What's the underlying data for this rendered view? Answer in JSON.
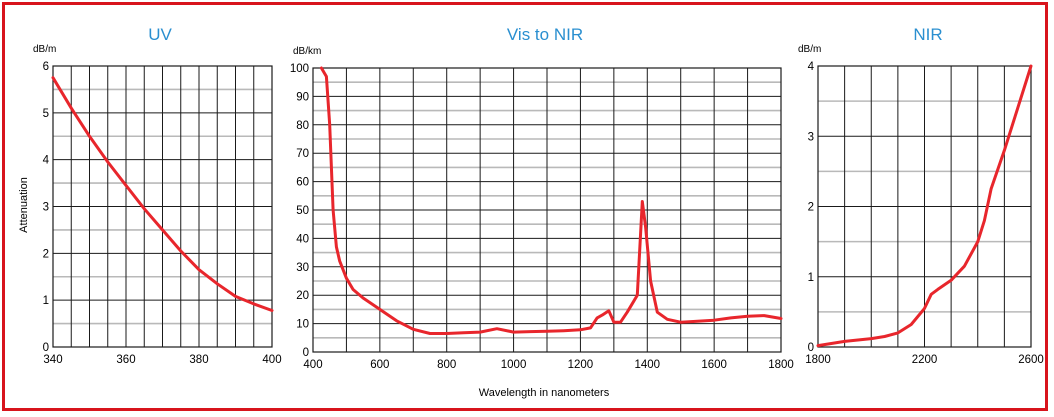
{
  "colors": {
    "frame": "#d8141c",
    "title": "#2a8fd0",
    "curve": "#e8262c"
  },
  "shared": {
    "ylabel": "Attenuation",
    "xlabel": "Wavelength in nanometers"
  },
  "chart_data": [
    {
      "type": "line",
      "title": "UV",
      "yunit": "dB/m",
      "xlim": [
        340,
        400
      ],
      "ylim": [
        0,
        6
      ],
      "xticks": [
        340,
        360,
        380,
        400
      ],
      "yticks": [
        0,
        1,
        2,
        3,
        4,
        5,
        6
      ],
      "grid": true,
      "series": [
        {
          "x": [
            340,
            345,
            350,
            355,
            360,
            365,
            370,
            375,
            380,
            385,
            390,
            395,
            400
          ],
          "y": [
            5.75,
            5.1,
            4.5,
            3.95,
            3.45,
            2.95,
            2.5,
            2.05,
            1.65,
            1.35,
            1.08,
            0.92,
            0.78
          ]
        }
      ]
    },
    {
      "type": "line",
      "title": "Vis to NIR",
      "yunit": "dB/km",
      "xlim": [
        400,
        1800
      ],
      "ylim": [
        0,
        100
      ],
      "xticks": [
        400,
        600,
        800,
        1000,
        1200,
        1400,
        1600,
        1800
      ],
      "yticks": [
        0,
        10,
        20,
        30,
        40,
        50,
        60,
        70,
        80,
        90,
        100
      ],
      "grid": true,
      "series": [
        {
          "x": [
            425,
            440,
            450,
            460,
            470,
            480,
            500,
            520,
            550,
            600,
            650,
            700,
            750,
            800,
            850,
            900,
            950,
            1000,
            1050,
            1100,
            1150,
            1200,
            1230,
            1250,
            1265,
            1285,
            1300,
            1320,
            1340,
            1370,
            1385,
            1395,
            1410,
            1430,
            1460,
            1500,
            1550,
            1600,
            1650,
            1700,
            1750,
            1800
          ],
          "y": [
            100,
            97,
            80,
            50,
            37,
            32,
            26,
            22,
            19,
            15,
            11,
            8,
            6.5,
            6.5,
            6.8,
            7,
            8.2,
            7,
            7.2,
            7.3,
            7.5,
            7.8,
            8.5,
            12,
            13,
            14.5,
            10.5,
            10.5,
            14,
            20,
            53,
            44,
            25,
            14,
            11.5,
            10.5,
            10.8,
            11.2,
            12,
            12.6,
            12.8,
            11.8
          ]
        }
      ]
    },
    {
      "type": "line",
      "title": "NIR",
      "yunit": "dB/m",
      "xlim": [
        1800,
        2600
      ],
      "ylim": [
        0,
        4
      ],
      "xticks": [
        1800,
        2200,
        2600
      ],
      "yticks": [
        0,
        1,
        2,
        3,
        4
      ],
      "grid": true,
      "series": [
        {
          "x": [
            1800,
            1850,
            1900,
            1950,
            2000,
            2050,
            2100,
            2150,
            2200,
            2225,
            2250,
            2300,
            2350,
            2400,
            2425,
            2450,
            2500,
            2550,
            2600
          ],
          "y": [
            0.02,
            0.05,
            0.08,
            0.1,
            0.12,
            0.15,
            0.2,
            0.32,
            0.55,
            0.75,
            0.82,
            0.95,
            1.15,
            1.5,
            1.8,
            2.25,
            2.8,
            3.4,
            4.0
          ]
        }
      ]
    }
  ]
}
